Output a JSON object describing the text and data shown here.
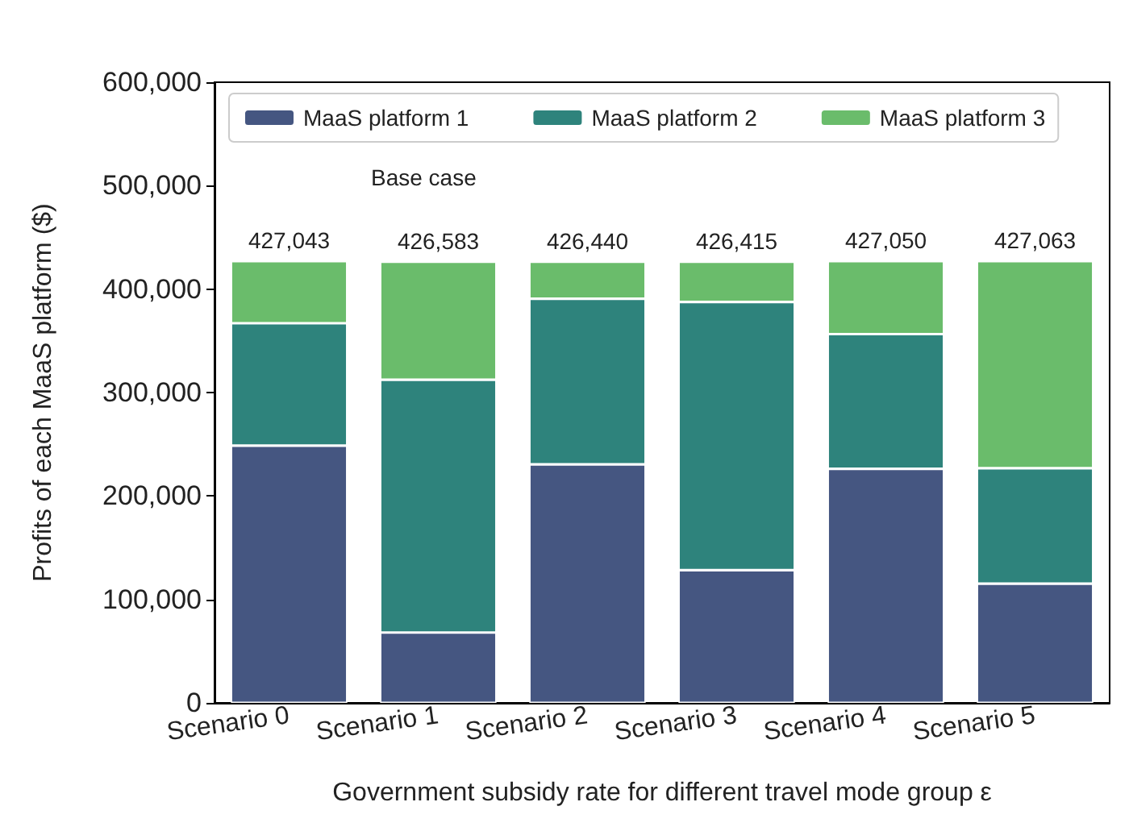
{
  "chart_data": {
    "type": "bar",
    "stacked": true,
    "categories": [
      "Scenario 0",
      "Scenario 1",
      "Scenario 2",
      "Scenario 3",
      "Scenario 4",
      "Scenario 5"
    ],
    "xlabel": "Government subsidy rate for different travel mode group ε",
    "ylabel": "Profits of each MaaS platform ($)",
    "series": [
      {
        "name": "MaaS platform 1",
        "color": "#455681",
        "values": [
          248600,
          68000,
          230500,
          128300,
          226200,
          115300
        ]
      },
      {
        "name": "MaaS platform 2",
        "color": "#2e837c",
        "values": [
          118400,
          244400,
          160200,
          259300,
          130300,
          111500
        ]
      },
      {
        "name": "MaaS platform 3",
        "color": "#6abc6b",
        "values": [
          60043,
          114183,
          35740,
          38815,
          70550,
          200263
        ]
      }
    ],
    "totals": [
      "427,043",
      "426,583",
      "426,440",
      "426,415",
      "427,050",
      "427,063"
    ],
    "annotations": [
      "Base case"
    ],
    "ylim": [
      0,
      600000
    ],
    "yticks": [
      {
        "value": 0,
        "label": "0"
      },
      {
        "value": 100000,
        "label": "100,000"
      },
      {
        "value": 200000,
        "label": "200,000"
      },
      {
        "value": 300000,
        "label": "300,000"
      },
      {
        "value": 400000,
        "label": "400,000"
      },
      {
        "value": 500000,
        "label": "500,000"
      },
      {
        "value": 600000,
        "label": "600,000"
      }
    ],
    "grid": false,
    "legend": "top"
  }
}
